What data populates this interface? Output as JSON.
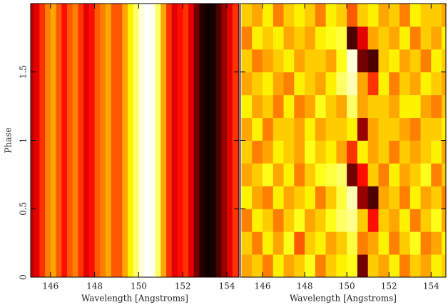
{
  "chart_data": [
    {
      "type": "heatmap",
      "xlabel": "Wavelength [Angstroms]",
      "ylabel": "Phase",
      "xlim": [
        145.1,
        154.55
      ],
      "ylim": [
        0,
        2
      ],
      "xticks": [
        146,
        148,
        150,
        152,
        154
      ],
      "yticks": [
        0,
        0.5,
        1,
        1.5
      ],
      "colormap": "heat",
      "x_bins": [
        145,
        145.25,
        145.5,
        145.75,
        146,
        146.25,
        146.5,
        146.75,
        147,
        147.25,
        147.5,
        147.75,
        148,
        148.25,
        148.5,
        148.75,
        149,
        149.25,
        149.5,
        149.75,
        150,
        150.25,
        150.5,
        150.75,
        151,
        151.25,
        151.5,
        151.75,
        152,
        152.25,
        152.5,
        152.75,
        153,
        153.25,
        153.5,
        153.75,
        154,
        154.25,
        154.5,
        154.75,
        155
      ],
      "values": [
        0.25,
        0.3,
        0.4,
        0.5,
        0.55,
        0.45,
        0.35,
        0.45,
        0.5,
        0.4,
        0.3,
        0.35,
        0.45,
        0.5,
        0.55,
        0.45,
        0.45,
        0.55,
        0.65,
        0.8,
        0.95,
        1.0,
        0.98,
        0.8,
        0.55,
        0.4,
        0.3,
        0.35,
        0.4,
        0.3,
        0.15,
        0.05,
        0.02,
        0.03,
        0.1,
        0.2,
        0.3,
        0.4,
        0.35,
        0.3
      ]
    },
    {
      "type": "heatmap",
      "xlabel": "Wavelength [Angstroms]",
      "xlim": [
        144.95,
        154.7
      ],
      "ylim": [
        0,
        2
      ],
      "xticks": [
        146,
        148,
        150,
        152,
        154
      ],
      "yticks": [
        0,
        0.5,
        1,
        1.5
      ],
      "colormap": "heat",
      "x_bins": [
        145,
        145.5,
        146,
        146.5,
        147,
        147.5,
        148,
        148.5,
        149,
        149.5,
        150,
        150.5,
        151,
        151.5,
        152,
        152.5,
        153,
        153.5,
        154,
        154.5,
        155
      ],
      "y_bins": [
        0,
        0.1667,
        0.3333,
        0.5,
        0.6667,
        0.8333,
        1,
        1.1667,
        1.3333,
        1.5,
        1.6667,
        1.8333,
        2
      ],
      "values": [
        [
          0.55,
          0.6,
          0.5,
          0.65,
          0.55,
          0.6,
          0.7,
          0.5,
          0.6,
          0.65,
          0.7,
          0.15,
          0.6,
          0.55,
          0.65,
          0.5,
          0.6,
          0.55,
          0.65,
          0.6
        ],
        [
          0.6,
          0.5,
          0.65,
          0.55,
          0.7,
          0.45,
          0.6,
          0.65,
          0.55,
          0.6,
          0.75,
          0.5,
          0.55,
          0.65,
          0.5,
          0.6,
          0.7,
          0.5,
          0.55,
          0.65
        ],
        [
          0.5,
          0.65,
          0.6,
          0.5,
          0.6,
          0.7,
          0.55,
          0.6,
          0.7,
          0.8,
          0.85,
          0.6,
          0.35,
          0.6,
          0.55,
          0.65,
          0.5,
          0.6,
          0.7,
          0.55
        ],
        [
          0.65,
          0.55,
          0.5,
          0.65,
          0.55,
          0.6,
          0.65,
          0.5,
          0.6,
          0.75,
          0.9,
          0.2,
          0.1,
          0.55,
          0.6,
          0.5,
          0.65,
          0.55,
          0.6,
          0.5
        ],
        [
          0.55,
          0.6,
          0.7,
          0.55,
          0.65,
          0.5,
          0.6,
          0.7,
          0.75,
          0.8,
          0.15,
          0.35,
          0.6,
          0.5,
          0.65,
          0.55,
          0.6,
          0.7,
          0.5,
          0.6
        ],
        [
          0.6,
          0.5,
          0.55,
          0.65,
          0.6,
          0.55,
          0.7,
          0.6,
          0.65,
          0.55,
          0.4,
          0.65,
          0.55,
          0.6,
          0.5,
          0.6,
          0.55,
          0.6,
          0.65,
          0.55
        ],
        [
          0.55,
          0.65,
          0.5,
          0.6,
          0.6,
          0.55,
          0.65,
          0.55,
          0.6,
          0.6,
          0.65,
          0.2,
          0.55,
          0.6,
          0.6,
          0.55,
          0.5,
          0.6,
          0.6,
          0.65
        ],
        [
          0.65,
          0.55,
          0.6,
          0.5,
          0.65,
          0.5,
          0.55,
          0.7,
          0.6,
          0.55,
          0.8,
          0.55,
          0.6,
          0.6,
          0.55,
          0.65,
          0.65,
          0.55,
          0.5,
          0.6
        ],
        [
          0.55,
          0.6,
          0.65,
          0.55,
          0.5,
          0.65,
          0.6,
          0.55,
          0.65,
          0.8,
          0.9,
          0.55,
          0.4,
          0.65,
          0.5,
          0.6,
          0.55,
          0.65,
          0.6,
          0.55
        ],
        [
          0.6,
          0.5,
          0.55,
          0.6,
          0.65,
          0.55,
          0.6,
          0.6,
          0.55,
          0.7,
          0.95,
          0.15,
          0.1,
          0.6,
          0.65,
          0.55,
          0.6,
          0.5,
          0.65,
          0.6
        ],
        [
          0.5,
          0.65,
          0.6,
          0.65,
          0.55,
          0.6,
          0.55,
          0.65,
          0.7,
          0.75,
          0.1,
          0.3,
          0.55,
          0.6,
          0.55,
          0.65,
          0.5,
          0.6,
          0.55,
          0.65
        ],
        [
          0.6,
          0.55,
          0.65,
          0.5,
          0.6,
          0.65,
          0.6,
          0.5,
          0.65,
          0.6,
          0.45,
          0.6,
          0.65,
          0.55,
          0.6,
          0.5,
          0.65,
          0.6,
          0.6,
          0.55
        ]
      ]
    }
  ]
}
